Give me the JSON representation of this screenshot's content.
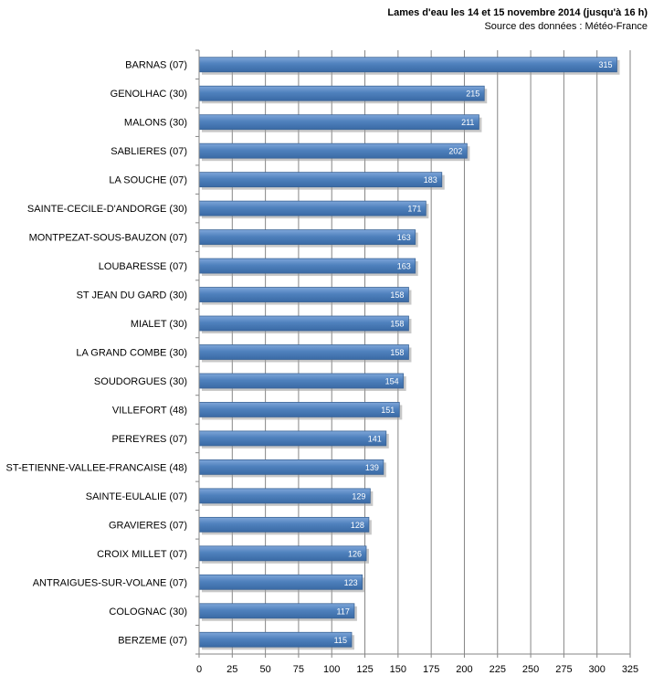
{
  "chart_data": {
    "type": "bar",
    "orientation": "horizontal",
    "title": "Lames d'eau les 14 et 15 novembre 2014 (jusqu'à 16 h)",
    "subtitle": "Source des données : Météo-France",
    "xlabel": "",
    "ylabel": "",
    "xlim": [
      0,
      325
    ],
    "x_ticks": [
      0,
      25,
      50,
      75,
      100,
      125,
      150,
      175,
      200,
      225,
      250,
      275,
      300,
      325
    ],
    "grid": true,
    "legend": "none",
    "bar_color": "#4f81bd",
    "categories": [
      "BARNAS (07)",
      "GENOLHAC (30)",
      "MALONS (30)",
      "SABLIERES (07)",
      "LA SOUCHE (07)",
      "SAINTE-CECILE-D'ANDORGE  (30)",
      "MONTPEZAT-SOUS-BAUZON  (07)",
      "LOUBARESSE (07)",
      "ST JEAN DU GARD (30)",
      "MIALET (30)",
      "LA GRAND COMBE (30)",
      "SOUDORGUES (30)",
      "VILLEFORT (48)",
      "PEREYRES  (07)",
      "ST-ETIENNE-VALLEE-FRANCAISE  (48)",
      "SAINTE-EULALIE  (07)",
      "GRAVIERES  (07)",
      "CROIX MILLET (07)",
      "ANTRAIGUES-SUR-VOLANE  (07)",
      "COLOGNAC (30)",
      "BERZEME  (07)"
    ],
    "values": [
      315,
      215,
      211,
      202,
      183,
      171,
      163,
      163,
      158,
      158,
      158,
      154,
      151,
      141,
      139,
      129,
      128,
      126,
      123,
      117,
      115
    ]
  }
}
